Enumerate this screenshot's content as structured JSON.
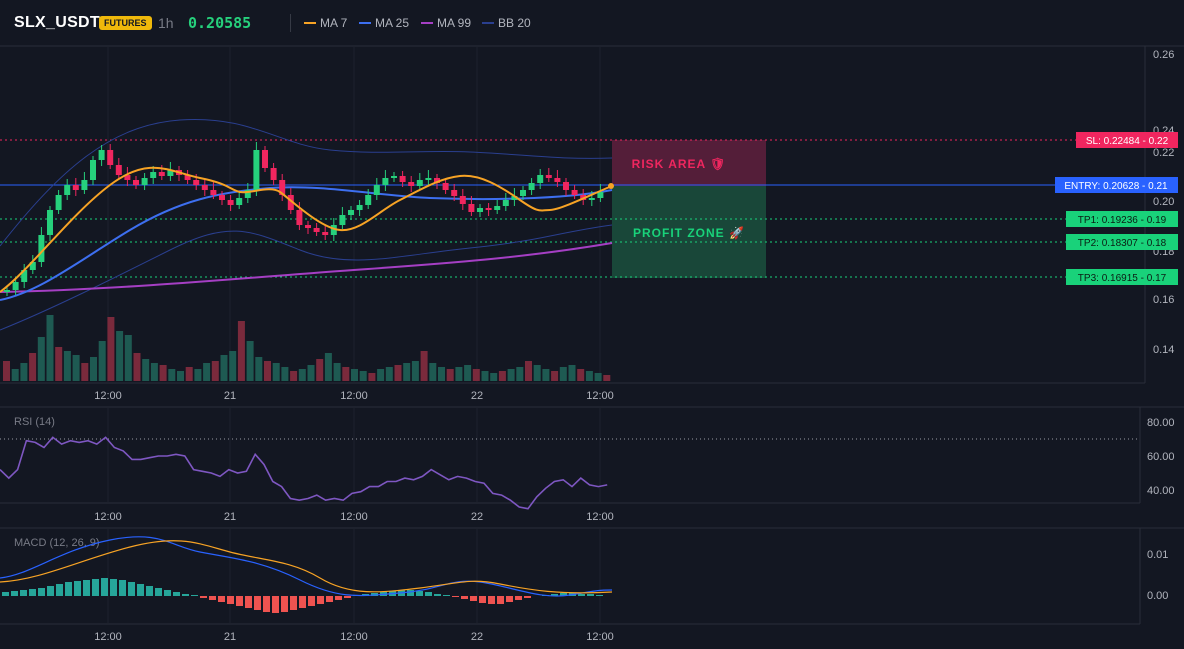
{
  "header": {
    "symbol": "SLX_USDT",
    "badge": "FUTURES",
    "interval": "1h",
    "price": "0.20585",
    "indicators": [
      {
        "label": "MA 7",
        "color": "#f7a325"
      },
      {
        "label": "MA 25",
        "color": "#3d6ff0"
      },
      {
        "label": "MA 99",
        "color": "#a53fc4"
      },
      {
        "label": "BB 20",
        "color": "#2a3f8f"
      }
    ]
  },
  "price_axis": {
    "ticks": [
      "0.26",
      "0.24",
      "0.22",
      "0.20",
      "0.18",
      "0.16",
      "0.14"
    ]
  },
  "time_axis": [
    "12:00",
    "21",
    "12:00",
    "22",
    "12:00"
  ],
  "levels": {
    "sl": {
      "label": "SL: 0.22484 - 0.22",
      "value": 0.22484,
      "color": "#f0265f"
    },
    "entry": {
      "label": "ENTRY: 0.20628 - 0.21",
      "value": 0.20628,
      "color": "#2962ff"
    },
    "tp1": {
      "label": "TP1: 0.19236 - 0.19",
      "value": 0.19236,
      "color": "#19d27a"
    },
    "tp2": {
      "label": "TP2: 0.18307 - 0.18",
      "value": 0.18307,
      "color": "#19d27a"
    },
    "tp3": {
      "label": "TP3: 0.16915 - 0.17",
      "value": 0.16915,
      "color": "#19d27a"
    }
  },
  "zones": {
    "risk": {
      "label": "RISK AREA 🛡",
      "color": "#f0265f"
    },
    "profit": {
      "label": "PROFIT ZONE 🚀",
      "color": "#19d27a"
    }
  },
  "rsi": {
    "title": "RSI (14)",
    "ticks": [
      "80.00",
      "60.00",
      "40.00"
    ],
    "values": [
      62,
      57,
      62,
      79,
      78,
      75,
      81,
      77,
      79,
      78,
      79,
      77,
      81,
      75,
      73,
      68,
      68,
      69,
      70,
      70,
      71,
      70,
      62,
      61,
      60,
      58,
      62,
      60,
      61,
      71,
      65,
      55,
      52,
      45,
      44,
      45,
      47,
      44,
      45,
      44,
      48,
      49,
      52,
      52,
      55,
      55,
      57,
      56,
      58,
      62,
      59,
      56,
      58,
      57,
      55,
      54,
      48,
      47,
      44,
      40,
      39,
      46,
      51,
      55,
      56,
      52,
      57,
      53,
      52,
      53
    ]
  },
  "macd": {
    "title": "MACD (12, 26, 9)",
    "ticks": [
      "0.01",
      "0.00"
    ]
  }
}
